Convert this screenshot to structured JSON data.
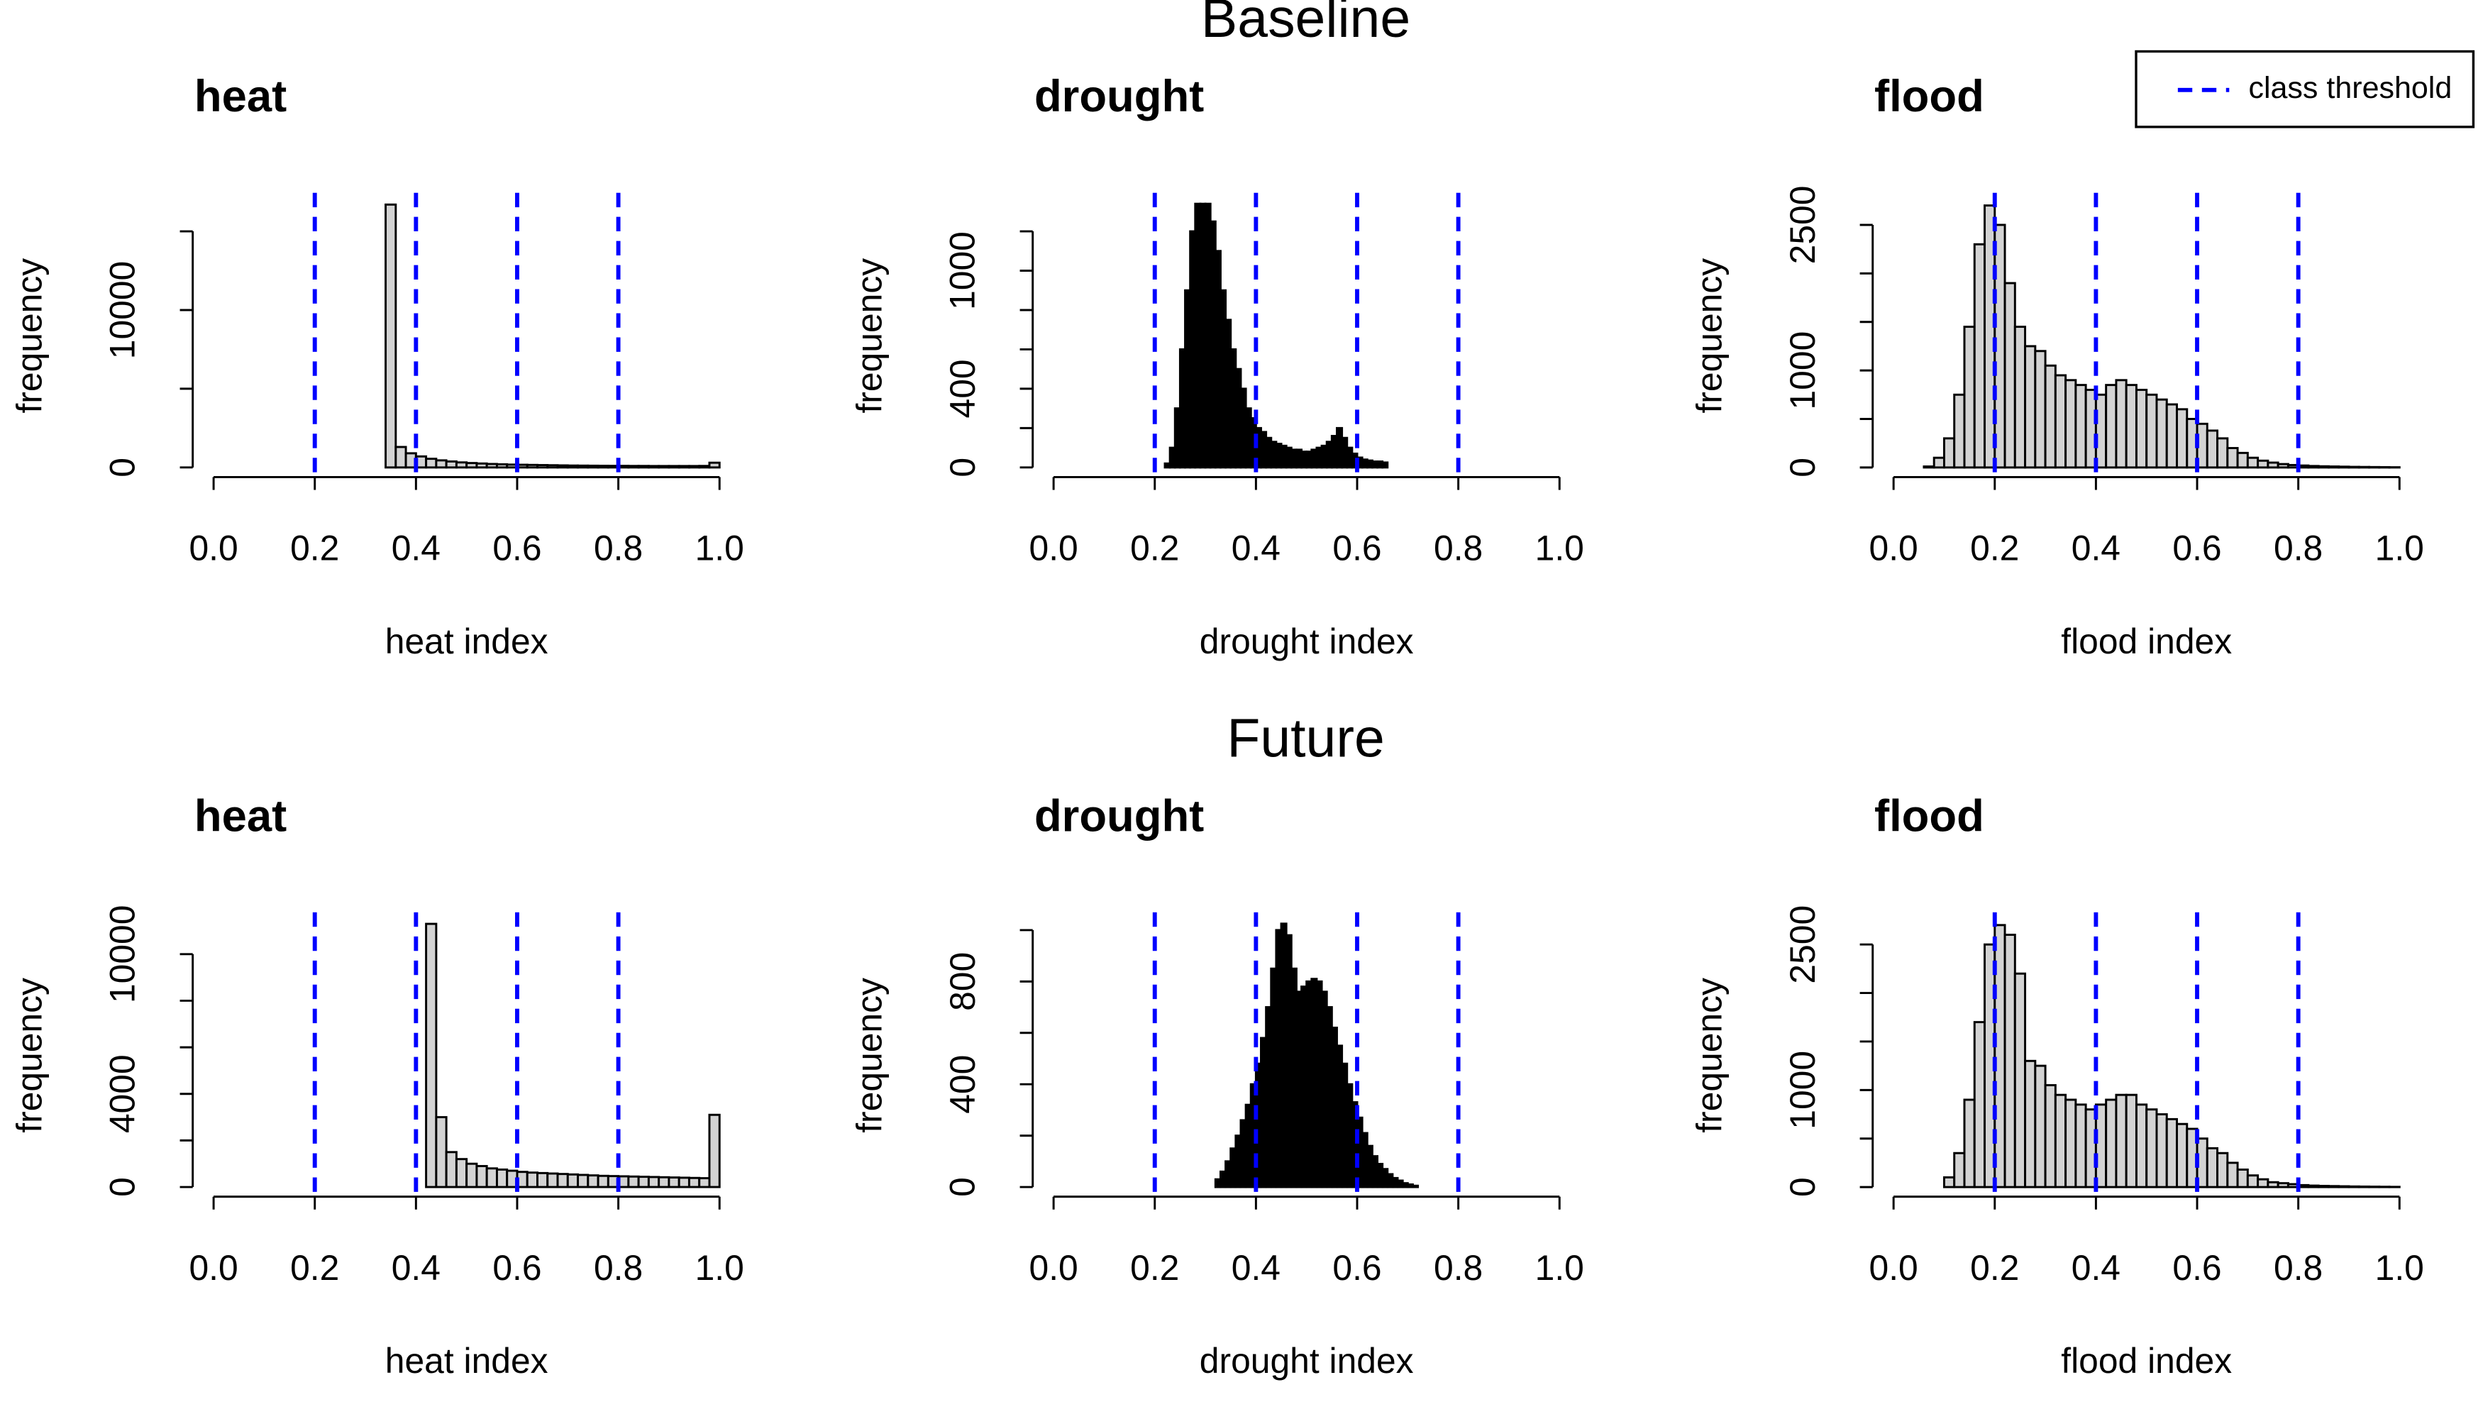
{
  "row_titles": [
    "Baseline",
    "Future"
  ],
  "thresholds": {
    "name": "class threshold",
    "color": "#0000ff",
    "values": [
      0.2,
      0.4,
      0.6,
      0.8
    ]
  },
  "legend": "topright",
  "chart_data": [
    {
      "type": "histogram",
      "title": "heat",
      "xlabel": "heat index",
      "ylabel": "frequency",
      "fill": "#d3d3d3",
      "bins": [
        0.34,
        0.36,
        0.38,
        0.4,
        0.42,
        0.44,
        0.46,
        0.48,
        0.5,
        0.52,
        0.54,
        0.56,
        0.58,
        0.6,
        0.62,
        0.64,
        0.66,
        0.68,
        0.7,
        0.72,
        0.74,
        0.76,
        0.78,
        0.8,
        0.82,
        0.84,
        0.86,
        0.88,
        0.9,
        0.92,
        0.94,
        0.96,
        0.98,
        1
      ],
      "counts": [
        16700,
        1300,
        900,
        700,
        550,
        450,
        380,
        320,
        280,
        250,
        220,
        200,
        180,
        170,
        160,
        150,
        140,
        130,
        120,
        115,
        110,
        105,
        100,
        100,
        95,
        95,
        90,
        90,
        90,
        90,
        90,
        95,
        300
      ],
      "xlim": [
        0,
        1
      ],
      "xticks": [
        {
          "value": 0,
          "label": "0.0"
        },
        0.2,
        0.4,
        0.6,
        0.8,
        {
          "value": 1,
          "label": "1.0"
        }
      ],
      "ylim": [
        -612,
        17450
      ],
      "yticks": [
        0,
        10000
      ],
      "yticks_minor": [
        5000,
        15000
      ]
    },
    {
      "type": "histogram",
      "title": "drought",
      "xlabel": "drought index",
      "ylabel": "frequency",
      "fill": "#000000",
      "bins": [
        0.22,
        0.23,
        0.24,
        0.25,
        0.26,
        0.27,
        0.28,
        0.29,
        0.3,
        0.31,
        0.32,
        0.33,
        0.34,
        0.35,
        0.36,
        0.37,
        0.38,
        0.39,
        0.4,
        0.41,
        0.42,
        0.43,
        0.44,
        0.45,
        0.46,
        0.47,
        0.48,
        0.49,
        0.5,
        0.51,
        0.52,
        0.53,
        0.54,
        0.55,
        0.56,
        0.57,
        0.58,
        0.59,
        0.6,
        0.61,
        0.62,
        0.63,
        0.64,
        0.65,
        0.66
      ],
      "counts": [
        20,
        100,
        300,
        600,
        900,
        1200,
        1340,
        1340,
        1340,
        1250,
        1100,
        900,
        750,
        600,
        500,
        400,
        300,
        250,
        200,
        180,
        150,
        130,
        120,
        110,
        100,
        90,
        90,
        80,
        80,
        90,
        100,
        110,
        130,
        160,
        200,
        150,
        100,
        70,
        50,
        40,
        35,
        30,
        30,
        25
      ],
      "xlim": [
        0,
        1
      ],
      "xticks": [
        {
          "value": 0,
          "label": "0.0"
        },
        0.2,
        0.4,
        0.6,
        0.8,
        {
          "value": 1,
          "label": "1.0"
        }
      ],
      "ylim": [
        -49,
        1396
      ],
      "yticks": [
        0,
        400,
        1000
      ],
      "yticks_minor": [
        200,
        600,
        800,
        1200
      ]
    },
    {
      "type": "histogram",
      "title": "flood",
      "xlabel": "flood index",
      "ylabel": "frequency",
      "fill": "#d3d3d3",
      "bins": [
        0.06,
        0.08,
        0.1,
        0.12,
        0.14,
        0.16,
        0.18,
        0.2,
        0.22,
        0.24,
        0.26,
        0.28,
        0.3,
        0.32,
        0.34,
        0.36,
        0.38,
        0.4,
        0.42,
        0.44,
        0.46,
        0.48,
        0.5,
        0.52,
        0.54,
        0.56,
        0.58,
        0.6,
        0.62,
        0.64,
        0.66,
        0.68,
        0.7,
        0.72,
        0.74,
        0.76,
        0.78,
        0.8,
        0.82,
        0.84,
        0.86,
        0.88,
        0.9,
        0.92,
        0.94,
        0.96,
        0.98,
        1
      ],
      "counts": [
        10,
        100,
        300,
        750,
        1450,
        2300,
        2700,
        2500,
        1900,
        1450,
        1250,
        1200,
        1050,
        950,
        900,
        850,
        800,
        750,
        850,
        900,
        850,
        800,
        750,
        700,
        650,
        600,
        500,
        450,
        380,
        300,
        200,
        150,
        100,
        70,
        50,
        35,
        25,
        20,
        15,
        12,
        10,
        8,
        6,
        5,
        4,
        3,
        2
      ],
      "xlim": [
        0,
        1
      ],
      "xticks": [
        {
          "value": 0,
          "label": "0.0"
        },
        0.2,
        0.4,
        0.6,
        0.8,
        {
          "value": 1,
          "label": "1.0"
        }
      ],
      "ylim": [
        -99,
        2831
      ],
      "yticks": [
        0,
        1000,
        2500
      ],
      "yticks_minor": [
        500,
        1500,
        2000
      ]
    },
    {
      "type": "histogram",
      "title": "heat",
      "xlabel": "heat index",
      "ylabel": "frequency",
      "fill": "#d3d3d3",
      "bins": [
        0.42,
        0.44,
        0.46,
        0.48,
        0.5,
        0.52,
        0.54,
        0.56,
        0.58,
        0.6,
        0.62,
        0.64,
        0.66,
        0.68,
        0.7,
        0.72,
        0.74,
        0.76,
        0.78,
        0.8,
        0.82,
        0.84,
        0.86,
        0.88,
        0.9,
        0.92,
        0.94,
        0.96,
        0.98,
        1
      ],
      "counts": [
        11300,
        3000,
        1500,
        1200,
        1000,
        900,
        800,
        750,
        700,
        650,
        620,
        600,
        580,
        560,
        540,
        520,
        500,
        480,
        470,
        460,
        450,
        440,
        430,
        420,
        410,
        400,
        390,
        380,
        3100
      ],
      "xlim": [
        0,
        1
      ],
      "xticks": [
        {
          "value": 0,
          "label": "0.0"
        },
        0.2,
        0.4,
        0.6,
        0.8,
        {
          "value": 1,
          "label": "1.0"
        }
      ],
      "ylim": [
        -414,
        11793
      ],
      "yticks": [
        0,
        4000,
        10000
      ],
      "yticks_minor": [
        2000,
        6000,
        8000
      ]
    },
    {
      "type": "histogram",
      "title": "drought",
      "xlabel": "drought index",
      "ylabel": "frequency",
      "fill": "#000000",
      "bins": [
        0.32,
        0.33,
        0.34,
        0.35,
        0.36,
        0.37,
        0.38,
        0.39,
        0.4,
        0.41,
        0.42,
        0.43,
        0.44,
        0.45,
        0.46,
        0.47,
        0.48,
        0.49,
        0.5,
        0.51,
        0.52,
        0.53,
        0.54,
        0.55,
        0.56,
        0.57,
        0.58,
        0.59,
        0.6,
        0.61,
        0.62,
        0.63,
        0.64,
        0.65,
        0.66,
        0.67,
        0.68,
        0.69,
        0.7,
        0.71,
        0.72
      ],
      "counts": [
        30,
        60,
        100,
        150,
        200,
        260,
        320,
        400,
        480,
        580,
        700,
        850,
        1000,
        1025,
        980,
        850,
        760,
        780,
        800,
        810,
        800,
        760,
        700,
        620,
        550,
        480,
        400,
        330,
        270,
        210,
        160,
        120,
        90,
        70,
        50,
        35,
        25,
        15,
        10,
        5
      ],
      "xlim": [
        0,
        1
      ],
      "xticks": [
        {
          "value": 0,
          "label": "0.0"
        },
        0.2,
        0.4,
        0.6,
        0.8,
        {
          "value": 1,
          "label": "1.0"
        }
      ],
      "ylim": [
        -37.5,
        1069
      ],
      "yticks": [
        0,
        400,
        800
      ],
      "yticks_minor": [
        200,
        600,
        1000
      ]
    },
    {
      "type": "histogram",
      "title": "flood",
      "xlabel": "flood index",
      "ylabel": "frequency",
      "fill": "#d3d3d3",
      "bins": [
        0.1,
        0.12,
        0.14,
        0.16,
        0.18,
        0.2,
        0.22,
        0.24,
        0.26,
        0.28,
        0.3,
        0.32,
        0.34,
        0.36,
        0.38,
        0.4,
        0.42,
        0.44,
        0.46,
        0.48,
        0.5,
        0.52,
        0.54,
        0.56,
        0.58,
        0.6,
        0.62,
        0.64,
        0.66,
        0.68,
        0.7,
        0.72,
        0.74,
        0.76,
        0.78,
        0.8,
        0.82,
        0.84,
        0.86,
        0.88,
        0.9,
        0.92,
        0.94,
        0.96,
        0.98,
        1
      ],
      "counts": [
        100,
        350,
        900,
        1700,
        2500,
        2700,
        2600,
        2200,
        1300,
        1250,
        1050,
        950,
        900,
        850,
        800,
        850,
        900,
        950,
        950,
        850,
        800,
        750,
        700,
        650,
        600,
        500,
        400,
        350,
        250,
        180,
        120,
        80,
        50,
        40,
        30,
        20,
        15,
        12,
        10,
        8,
        6,
        5,
        4,
        3,
        2
      ],
      "xlim": [
        0,
        1
      ],
      "xticks": [
        {
          "value": 0,
          "label": "0.0"
        },
        0.2,
        0.4,
        0.6,
        0.8,
        {
          "value": 1,
          "label": "1.0"
        }
      ],
      "ylim": [
        -99,
        2831
      ],
      "yticks": [
        0,
        1000,
        2500
      ],
      "yticks_minor": [
        500,
        1500,
        2000
      ]
    }
  ]
}
